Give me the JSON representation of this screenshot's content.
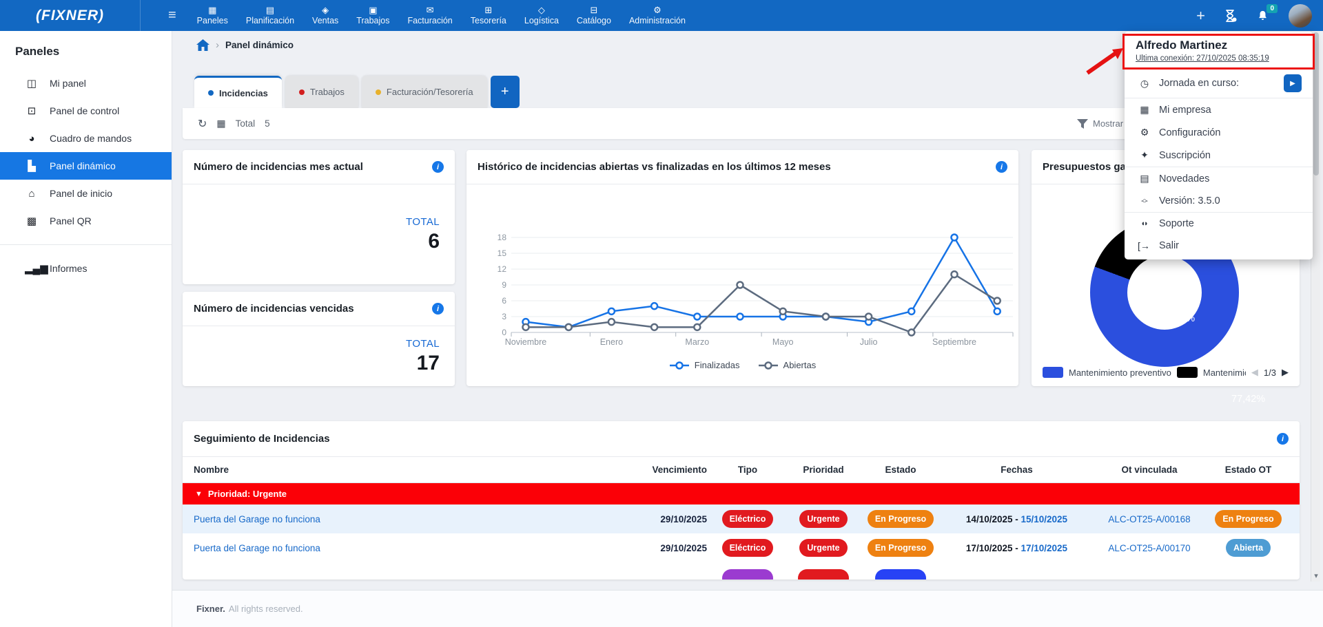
{
  "brand": {
    "logo_text": "(FIXNER)"
  },
  "navbar": {
    "menu_glyph": "≡",
    "items": [
      {
        "label": "Paneles",
        "glyph": "▦"
      },
      {
        "label": "Planificación",
        "glyph": "▤"
      },
      {
        "label": "Ventas",
        "glyph": "◈"
      },
      {
        "label": "Trabajos",
        "glyph": "▣"
      },
      {
        "label": "Facturación",
        "glyph": "✉"
      },
      {
        "label": "Tesorería",
        "glyph": "⊞"
      },
      {
        "label": "Logística",
        "glyph": "◇"
      },
      {
        "label": "Catálogo",
        "glyph": "⊟"
      },
      {
        "label": "Administración",
        "glyph": "⚙"
      }
    ],
    "plus_glyph": "+",
    "notification_count": "0",
    "badge_color": "#14a3b2"
  },
  "sidebar": {
    "heading": "Paneles",
    "items": [
      {
        "label": "Mi panel",
        "glyph": "◫"
      },
      {
        "label": "Panel de control",
        "glyph": "⊡"
      },
      {
        "label": "Cuadro de mandos",
        "glyph": "◕"
      },
      {
        "label": "Panel dinámico",
        "glyph": "▙"
      },
      {
        "label": "Panel de inicio",
        "glyph": "⌂"
      },
      {
        "label": "Panel QR",
        "glyph": "▩"
      }
    ],
    "informes": {
      "label": "Informes",
      "glyph": "▂▄▆"
    }
  },
  "breadcrumb": {
    "separator": "›",
    "page": "Panel dinámico"
  },
  "tabs": {
    "items": [
      {
        "label": "Incidencias",
        "dot_color": "#1268c2"
      },
      {
        "label": "Trabajos",
        "dot_color": "#d21f1f"
      },
      {
        "label": "Facturación/Tesorería",
        "dot_color": "#e8b12c"
      }
    ],
    "add_label": "+"
  },
  "toolbar": {
    "refresh_glyph": "↻",
    "calc_glyph": "▦",
    "total_label": "Total",
    "total_value": "5",
    "filter_label": "Mostrar fil"
  },
  "cards": {
    "kpi1": {
      "title": "Número de incidencias mes actual",
      "total_label": "TOTAL",
      "value": "6"
    },
    "kpi2": {
      "title": "Número de incidencias vencidas",
      "total_label": "TOTAL",
      "value": "17"
    }
  },
  "chart_data": [
    {
      "type": "line",
      "title": "Histórico de incidencias abiertas vs finalizadas en los últimos 12 meses",
      "num_points": 12,
      "x_tick_labels": [
        "Noviembre",
        "Enero",
        "Marzo",
        "Mayo",
        "Julio",
        "Septiembre"
      ],
      "ylim": [
        0,
        18
      ],
      "yticks": [
        0,
        3,
        6,
        9,
        12,
        15,
        18
      ],
      "grid": true,
      "legend_position": "bottom",
      "series": [
        {
          "name": "Finalizadas",
          "color": "#1673e6",
          "values": [
            2,
            1,
            4,
            5,
            3,
            3,
            3,
            3,
            2,
            4,
            18,
            4
          ]
        },
        {
          "name": "Abiertas",
          "color": "#5c6b7f",
          "values": [
            1,
            1,
            2,
            1,
            1,
            9,
            4,
            3,
            3,
            0,
            11,
            6
          ]
        }
      ]
    },
    {
      "type": "pie",
      "title": "Presupuestos gan",
      "segments": [
        {
          "label": "Mantenimiento preventivo",
          "value": 77.42,
          "label_text": "77,42%",
          "color": "#2b4fde"
        },
        {
          "label": "Mantenimiento",
          "value": 19.35,
          "label_text": "19,35%",
          "color": "#000000"
        }
      ],
      "remainder_color": "#d9dee6",
      "pagination": {
        "prev": "◀",
        "page": "1/3",
        "next": "▶"
      }
    }
  ],
  "table": {
    "title": "Seguimiento de Incidencias",
    "columns": [
      "Nombre",
      "Vencimiento",
      "Tipo",
      "Prioridad",
      "Estado",
      "Fechas",
      "Ot vinculada",
      "Estado OT"
    ],
    "group": {
      "caret": "▼",
      "label": "Prioridad: Urgente",
      "color": "#fb0007"
    },
    "rows": [
      {
        "name": "Puerta del Garage no funciona",
        "vencimiento": "29/10/2025",
        "tipo": {
          "label": "Eléctrico",
          "color": "#e11a1f"
        },
        "prioridad": {
          "label": "Urgente",
          "color": "#e11a1f"
        },
        "estado": {
          "label": "En Progreso",
          "color": "#ee8111"
        },
        "fechas_start": "14/10/2025 -",
        "fechas_end": "15/10/2025",
        "ot": "ALC-OT25-A/00168",
        "estado_ot": {
          "label": "En Progreso",
          "color": "#ee8111"
        }
      },
      {
        "name": "Puerta del Garage no funciona",
        "vencimiento": "29/10/2025",
        "tipo": {
          "label": "Eléctrico",
          "color": "#e11a1f"
        },
        "prioridad": {
          "label": "Urgente",
          "color": "#e11a1f"
        },
        "estado": {
          "label": "En Progreso",
          "color": "#ee8111"
        },
        "fechas_start": "17/10/2025 -",
        "fechas_end": "17/10/2025",
        "ot": "ALC-OT25-A/00170",
        "estado_ot": {
          "label": "Abierta",
          "color": "#4e9cd3"
        }
      }
    ],
    "partial_badges": [
      {
        "color": "#9b3bd0"
      },
      {
        "color": "#e11a1f"
      },
      {
        "color": "#2742f5"
      }
    ]
  },
  "user_menu": {
    "name": "Alfredo Martinez",
    "last_connection": "Ultima conexión: 27/10/2025 08:35:19",
    "play_glyph": "▶",
    "items": [
      {
        "label": "Jornada en curso:",
        "glyph": "◷"
      },
      {
        "label": "Mi empresa",
        "glyph": "▦"
      },
      {
        "label": "Configuración",
        "glyph": "⚙"
      },
      {
        "label": "Suscripción",
        "glyph": "✦"
      },
      {
        "label": "Novedades",
        "glyph": "▤"
      },
      {
        "label": "Versión: 3.5.0",
        "glyph": "-○-"
      },
      {
        "label": "Soporte",
        "glyph": "◖◗"
      },
      {
        "label": "Salir",
        "glyph": "[→"
      }
    ]
  },
  "footer": {
    "brand": "Fixner.",
    "text": "All rights reserved."
  },
  "scrollbar": {
    "arrow_glyph": "▾"
  }
}
